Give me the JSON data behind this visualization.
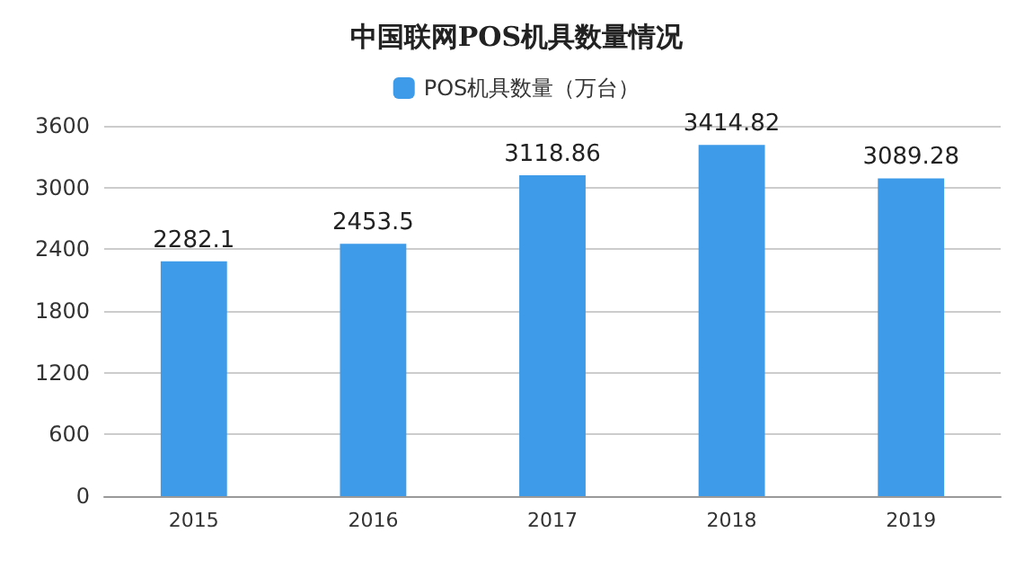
{
  "chart_data": {
    "type": "bar",
    "title": "中国联网POS机具数量情况",
    "categories": [
      "2015",
      "2016",
      "2017",
      "2018",
      "2019"
    ],
    "series": [
      {
        "name": "POS机具数量（万台）",
        "color": "#3d9be9",
        "values": [
          2282.1,
          2453.5,
          3118.86,
          3414.82,
          3089.28
        ]
      }
    ],
    "ylim": [
      0,
      3600
    ],
    "yticks": [
      0,
      600,
      1200,
      1800,
      2400,
      3000,
      3600
    ],
    "grid": "y",
    "legend": "top",
    "data_labels": true
  }
}
